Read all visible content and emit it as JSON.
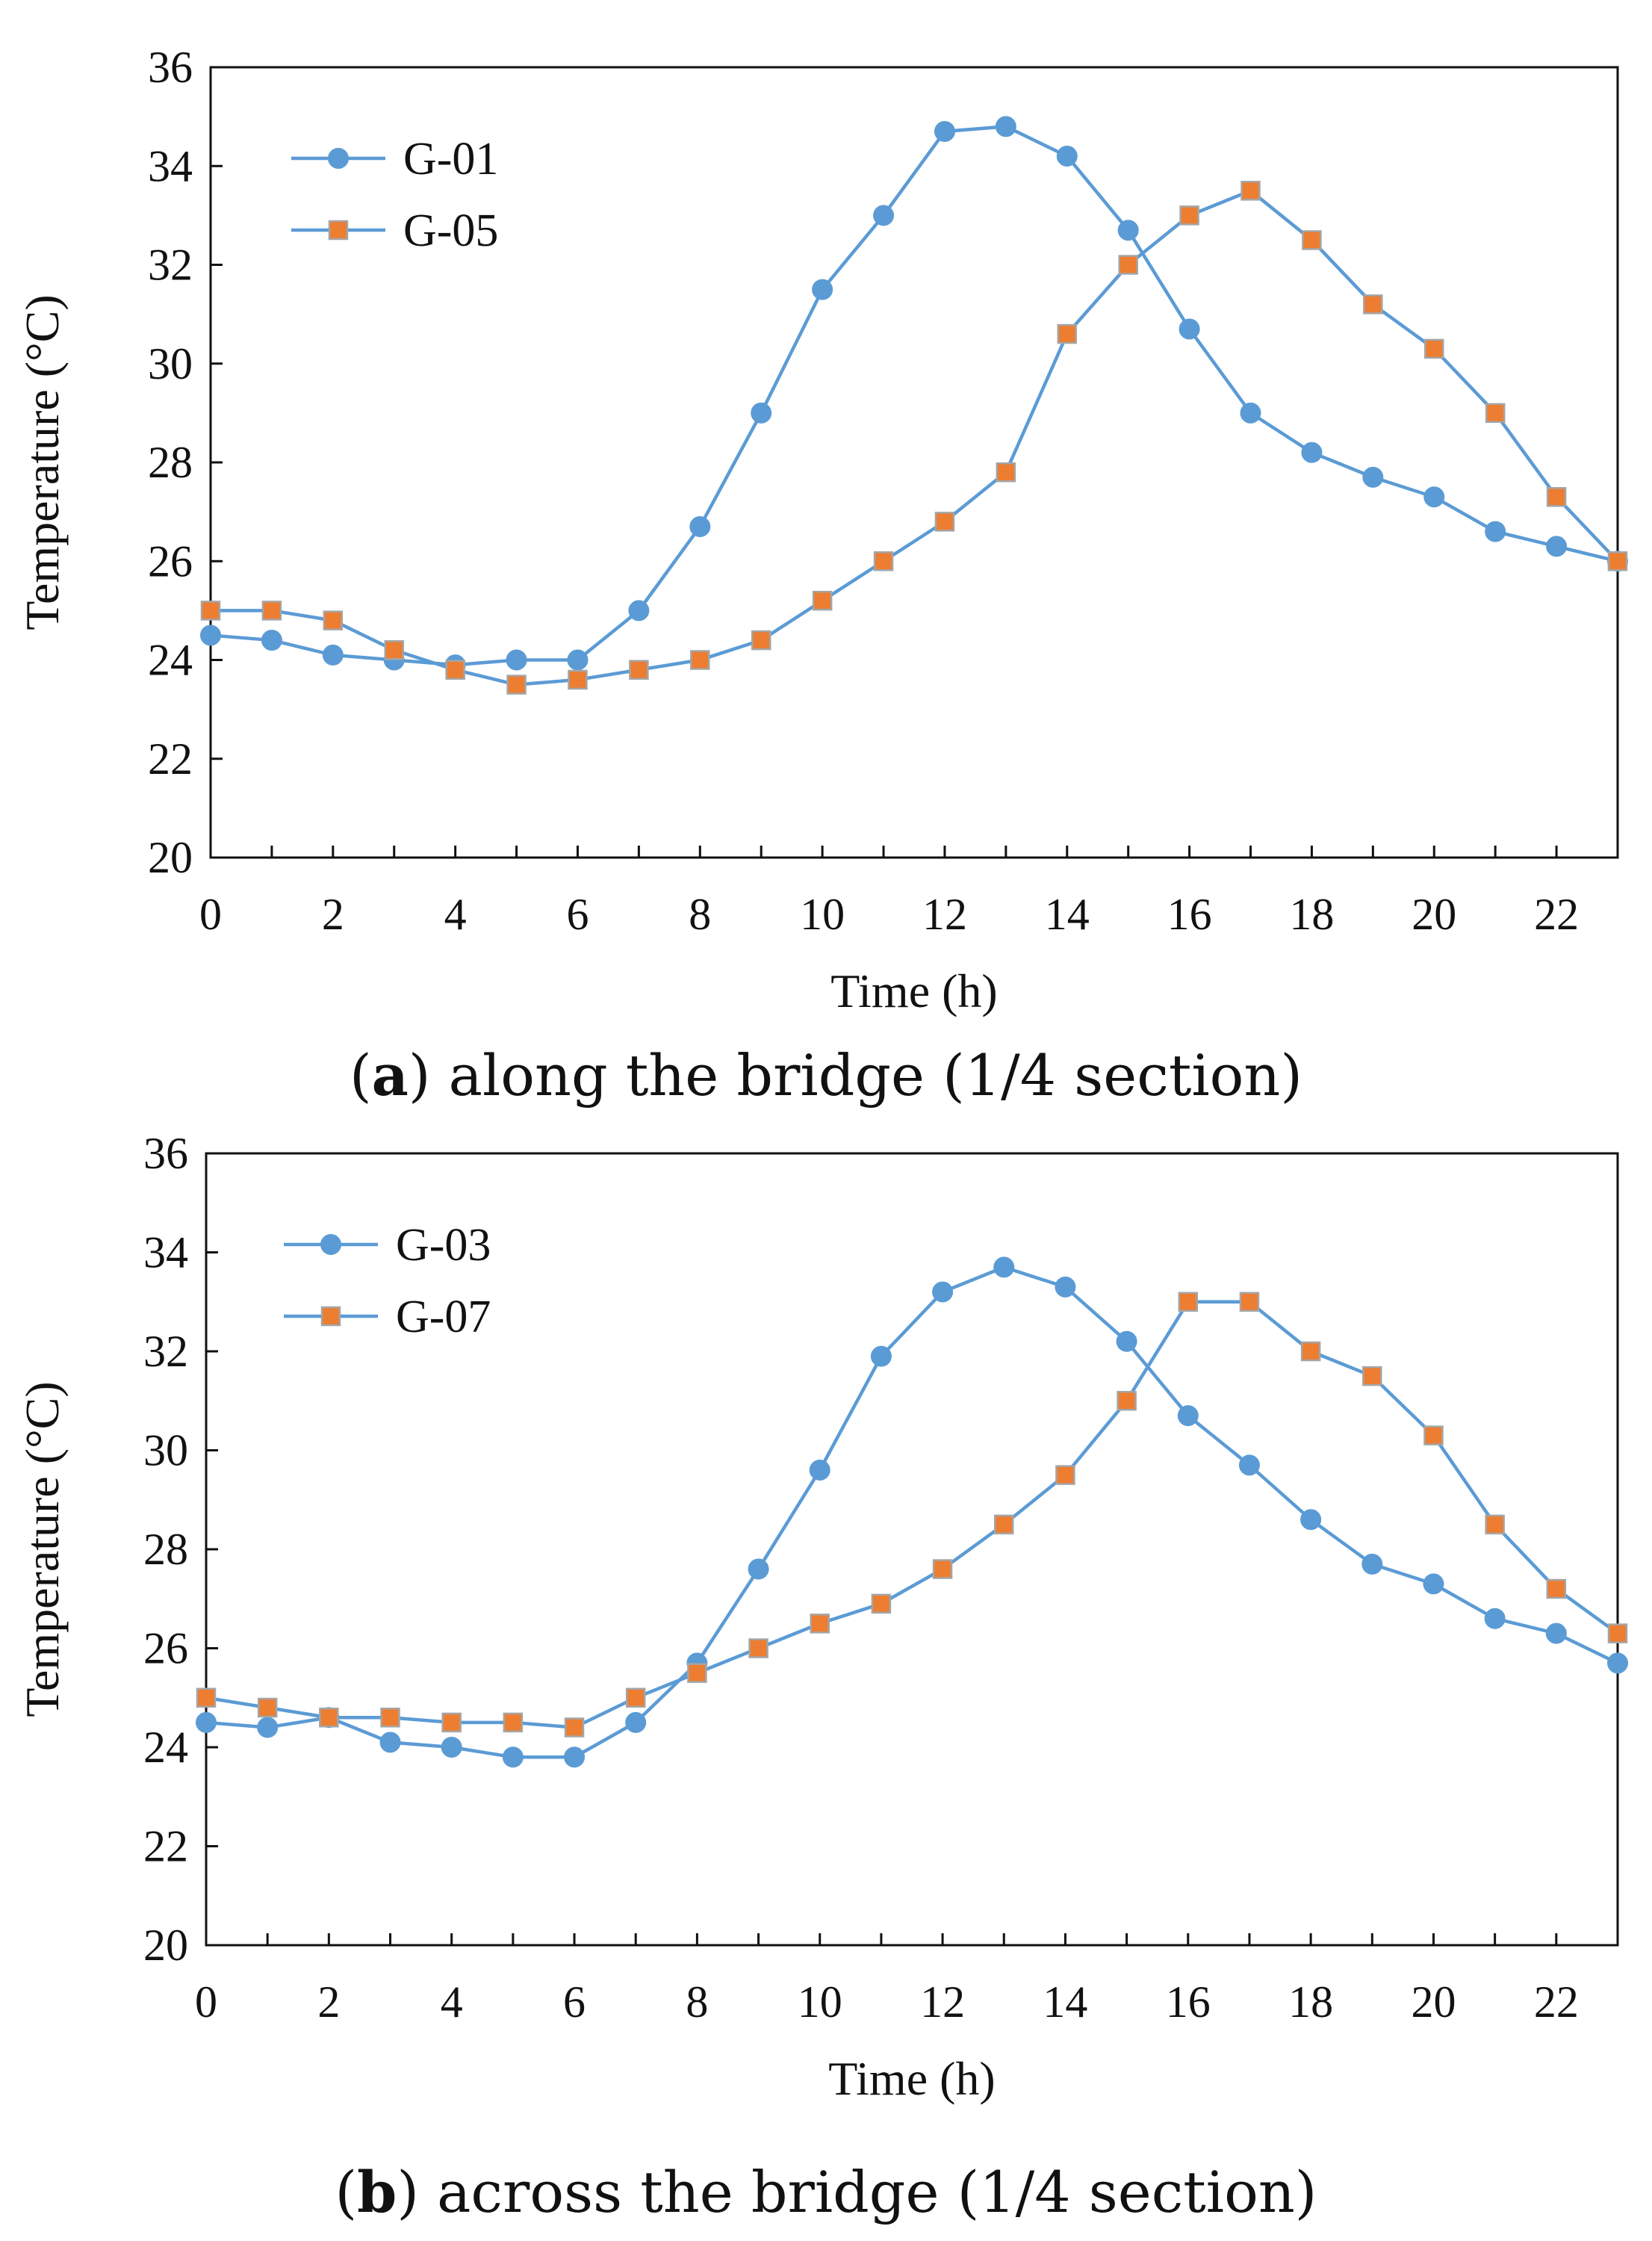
{
  "colors": {
    "line": "#5b9bd5",
    "marker_square_fill": "#ed7d31",
    "marker_circle_fill": "#5b9bd5",
    "axis": "#111111"
  },
  "chart_data": [
    {
      "type": "line",
      "caption_letter": "a",
      "caption_rest": ") along the bridge (1/4 section)",
      "xlabel": "Time (h)",
      "ylabel": "Temperature (°C)",
      "xlim": [
        0,
        23
      ],
      "ylim": [
        20,
        36
      ],
      "xticks": [
        0,
        2,
        4,
        6,
        8,
        10,
        12,
        14,
        16,
        18,
        20,
        22
      ],
      "yticks": [
        20,
        22,
        24,
        26,
        28,
        30,
        32,
        34,
        36
      ],
      "legend_position": "top-left",
      "x": [
        0,
        1,
        2,
        3,
        4,
        5,
        6,
        7,
        8,
        9,
        10,
        11,
        12,
        13,
        14,
        15,
        16,
        17,
        18,
        19,
        20,
        21,
        22,
        23
      ],
      "series": [
        {
          "name": "G-01",
          "marker": "circle",
          "values": [
            24.5,
            24.4,
            24.1,
            24.0,
            23.9,
            24.0,
            24.0,
            25.0,
            26.7,
            29.0,
            31.5,
            33.0,
            34.7,
            34.8,
            34.2,
            32.7,
            30.7,
            29.0,
            28.2,
            27.7,
            27.3,
            26.6,
            26.3,
            26.0
          ]
        },
        {
          "name": "G-05",
          "marker": "square",
          "values": [
            25.0,
            25.0,
            24.8,
            24.2,
            23.8,
            23.5,
            23.6,
            23.8,
            24.0,
            24.4,
            25.2,
            26.0,
            26.8,
            27.8,
            30.6,
            32.0,
            33.0,
            33.5,
            32.5,
            31.2,
            30.3,
            29.0,
            27.3,
            26.0
          ]
        }
      ]
    },
    {
      "type": "line",
      "caption_letter": "b",
      "caption_rest": ") across the bridge (1/4 section)",
      "xlabel": "Time (h)",
      "ylabel": "Temperature (°C)",
      "xlim": [
        0,
        23
      ],
      "ylim": [
        20,
        36
      ],
      "xticks": [
        0,
        2,
        4,
        6,
        8,
        10,
        12,
        14,
        16,
        18,
        20,
        22
      ],
      "yticks": [
        20,
        22,
        24,
        26,
        28,
        30,
        32,
        34,
        36
      ],
      "legend_position": "top-left",
      "x": [
        0,
        1,
        2,
        3,
        4,
        5,
        6,
        7,
        8,
        9,
        10,
        11,
        12,
        13,
        14,
        15,
        16,
        17,
        18,
        19,
        20,
        21,
        22,
        23
      ],
      "series": [
        {
          "name": "G-03",
          "marker": "circle",
          "values": [
            24.5,
            24.4,
            24.6,
            24.1,
            24.0,
            23.8,
            23.8,
            24.5,
            25.7,
            27.6,
            29.6,
            31.9,
            33.2,
            33.7,
            33.3,
            32.2,
            30.7,
            29.7,
            28.6,
            27.7,
            27.3,
            26.6,
            26.3,
            25.7
          ]
        },
        {
          "name": "G-07",
          "marker": "square",
          "values": [
            25.0,
            24.8,
            24.6,
            24.6,
            24.5,
            24.5,
            24.4,
            25.0,
            25.5,
            26.0,
            26.5,
            26.9,
            27.6,
            28.5,
            29.5,
            31.0,
            33.0,
            33.0,
            32.0,
            31.5,
            30.3,
            28.5,
            27.2,
            26.3
          ]
        }
      ]
    }
  ]
}
